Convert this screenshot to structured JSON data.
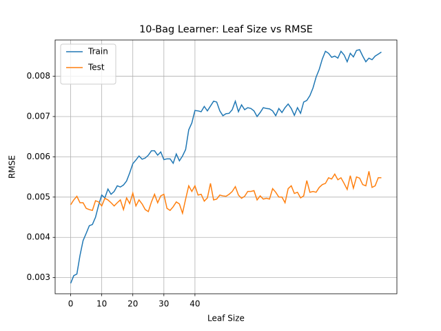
{
  "chart_data": {
    "type": "line",
    "title": "10-Bag Learner: Leaf Size vs RMSE",
    "x_label": "Leaf Size",
    "y_label": "RMSE",
    "x": [
      0,
      1,
      2,
      3,
      4,
      5,
      6,
      7,
      8,
      9,
      10,
      11,
      12,
      13,
      14,
      15,
      16,
      17,
      18,
      19,
      20,
      21,
      22,
      23,
      24,
      25,
      26,
      27,
      28,
      29,
      30,
      31,
      32,
      33,
      34,
      35,
      36,
      37,
      38,
      39,
      40,
      41,
      42,
      43,
      44,
      45,
      46,
      47,
      48,
      49,
      50,
      51,
      52,
      53,
      54,
      55,
      56,
      57,
      58,
      59,
      60,
      61,
      62,
      63,
      64,
      65,
      66,
      67,
      68,
      69,
      70,
      71,
      72,
      73,
      74,
      75,
      76,
      77,
      78,
      79,
      80,
      81,
      82,
      83,
      84,
      85,
      86,
      87,
      88,
      89,
      90,
      91,
      92,
      93,
      94,
      95,
      96,
      97,
      98,
      99,
      100
    ],
    "series": [
      {
        "name": "Train",
        "color": "#1f77b4",
        "values": [
          0.00286,
          0.00305,
          0.00309,
          0.00355,
          0.00392,
          0.0041,
          0.00429,
          0.00432,
          0.0045,
          0.0048,
          0.00505,
          0.00498,
          0.0052,
          0.00507,
          0.00514,
          0.00528,
          0.00525,
          0.0053,
          0.0054,
          0.0056,
          0.00583,
          0.00592,
          0.00602,
          0.00594,
          0.00597,
          0.00604,
          0.00615,
          0.00615,
          0.00604,
          0.00612,
          0.00593,
          0.00595,
          0.00595,
          0.00584,
          0.00607,
          0.0059,
          0.00602,
          0.00618,
          0.00667,
          0.00684,
          0.00715,
          0.00714,
          0.00712,
          0.00725,
          0.00714,
          0.00726,
          0.00738,
          0.00736,
          0.00714,
          0.00702,
          0.00707,
          0.00708,
          0.00717,
          0.00738,
          0.00712,
          0.00729,
          0.00717,
          0.00722,
          0.0072,
          0.00714,
          0.007,
          0.0071,
          0.00722,
          0.0072,
          0.00719,
          0.00714,
          0.00702,
          0.0072,
          0.0071,
          0.00722,
          0.00731,
          0.0072,
          0.00703,
          0.00722,
          0.00708,
          0.00736,
          0.0074,
          0.00752,
          0.00771,
          0.00798,
          0.00817,
          0.00843,
          0.00862,
          0.00857,
          0.00847,
          0.0085,
          0.00845,
          0.00862,
          0.00853,
          0.00836,
          0.00857,
          0.00848,
          0.00864,
          0.00866,
          0.0085,
          0.00836,
          0.00845,
          0.00841,
          0.0085,
          0.00855,
          0.0086
        ]
      },
      {
        "name": "Test",
        "color": "#ff7f0e",
        "values": [
          0.00481,
          0.00493,
          0.00502,
          0.00486,
          0.00486,
          0.00472,
          0.00469,
          0.00467,
          0.00491,
          0.00488,
          0.00478,
          0.00497,
          0.00493,
          0.00486,
          0.00478,
          0.00486,
          0.00493,
          0.00469,
          0.00498,
          0.00484,
          0.0051,
          0.00478,
          0.00493,
          0.00483,
          0.00469,
          0.00464,
          0.00488,
          0.00507,
          0.00486,
          0.00503,
          0.00507,
          0.00472,
          0.00467,
          0.00476,
          0.00488,
          0.00483,
          0.0046,
          0.00495,
          0.00528,
          0.00514,
          0.00528,
          0.00505,
          0.00507,
          0.0049,
          0.00498,
          0.00534,
          0.00493,
          0.00495,
          0.00505,
          0.00503,
          0.00502,
          0.00507,
          0.00514,
          0.00526,
          0.00505,
          0.00497,
          0.00502,
          0.00514,
          0.00514,
          0.00516,
          0.00493,
          0.00503,
          0.00495,
          0.00497,
          0.00495,
          0.00521,
          0.00512,
          0.005,
          0.005,
          0.00486,
          0.00521,
          0.00528,
          0.00509,
          0.00512,
          0.00498,
          0.00503,
          0.00541,
          0.00512,
          0.00514,
          0.00512,
          0.00524,
          0.00531,
          0.00534,
          0.00548,
          0.00545,
          0.00557,
          0.00543,
          0.00548,
          0.00534,
          0.00519,
          0.00553,
          0.00522,
          0.0055,
          0.00547,
          0.00531,
          0.00528,
          0.00564,
          0.00524,
          0.00528,
          0.00548,
          0.00548
        ]
      }
    ],
    "xlim": [
      -5,
      105
    ],
    "ylim": [
      0.0026,
      0.0089
    ],
    "xticks": [
      0,
      10,
      20,
      30,
      40
    ],
    "yticks": [
      0.003,
      0.004,
      0.005,
      0.006,
      0.007,
      0.008
    ],
    "grid": true,
    "legend": "upper left"
  }
}
